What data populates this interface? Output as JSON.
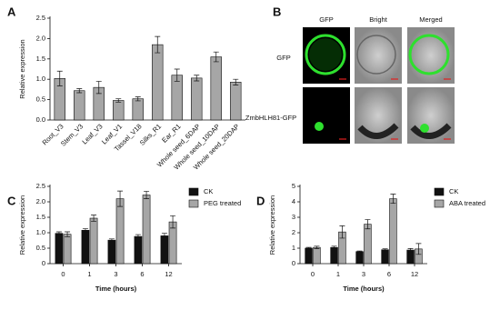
{
  "chart_data": [
    {
      "type": "bar",
      "panel": "A",
      "ylabel": "Relative expression",
      "categories": [
        "Root_V3",
        "Stem_V3",
        "Leaf_V3",
        "Leaf_V1",
        "Tassel_V18",
        "Silks_R1",
        "Ear_R1",
        "Whole seed_6DAP",
        "Whole seed_10DAP",
        "Whole seed_20DAP"
      ],
      "values": [
        1.02,
        0.72,
        0.8,
        0.48,
        0.52,
        1.85,
        1.1,
        1.03,
        1.55,
        0.93
      ],
      "errors": [
        0.18,
        0.05,
        0.15,
        0.04,
        0.05,
        0.2,
        0.15,
        0.07,
        0.12,
        0.07
      ],
      "color": "#a6a6a6",
      "ylim": [
        0,
        2.5
      ],
      "yticks": [
        {
          "value": 0,
          "label": "0.0"
        },
        0.5,
        {
          "value": 1,
          "label": "1.0"
        },
        1.5,
        {
          "value": 2,
          "label": "2.0"
        },
        2.5
      ]
    },
    {
      "type": "bar",
      "panel": "C",
      "ylabel": "Relative expression",
      "xlabel": "Time (hours)",
      "categories": [
        "0",
        "1",
        "3",
        "6",
        "12"
      ],
      "series": [
        {
          "name": "CK",
          "color": "#111111",
          "values": [
            0.98,
            1.08,
            0.76,
            0.88,
            0.9
          ],
          "errors": [
            0.05,
            0.05,
            0.04,
            0.06,
            0.08
          ]
        },
        {
          "name": "PEG treated",
          "color": "#a6a6a6",
          "values": [
            0.95,
            1.47,
            2.1,
            2.22,
            1.35
          ],
          "errors": [
            0.08,
            0.1,
            0.25,
            0.12,
            0.2
          ]
        }
      ],
      "ylim": [
        0,
        2.5
      ],
      "yticks": [
        0,
        0.5,
        {
          "value": 1,
          "label": "1.0"
        },
        1.5,
        {
          "value": 2,
          "label": "2.0"
        },
        2.5
      ],
      "legend": "right"
    },
    {
      "type": "bar",
      "panel": "D",
      "ylabel": "Relative expression",
      "xlabel": "Time (hours)",
      "categories": [
        "0",
        "1",
        "3",
        "6",
        "12"
      ],
      "series": [
        {
          "name": "CK",
          "color": "#111111",
          "values": [
            1.0,
            1.05,
            0.78,
            0.9,
            0.88
          ],
          "errors": [
            0.05,
            0.08,
            0.04,
            0.06,
            0.1
          ]
        },
        {
          "name": "ABA treated",
          "color": "#a6a6a6",
          "values": [
            1.05,
            2.05,
            2.55,
            4.2,
            0.95
          ],
          "errors": [
            0.08,
            0.4,
            0.3,
            0.3,
            0.35
          ]
        }
      ],
      "ylim": [
        0,
        5
      ],
      "yticks": [
        0,
        1,
        2,
        3,
        4,
        5
      ],
      "legend": "right"
    }
  ],
  "micrograph": {
    "panel": "B",
    "columns": [
      "GFP",
      "Bright",
      "Merged"
    ],
    "rows": [
      "GFP",
      "ZmbHLH81-GFP"
    ]
  }
}
